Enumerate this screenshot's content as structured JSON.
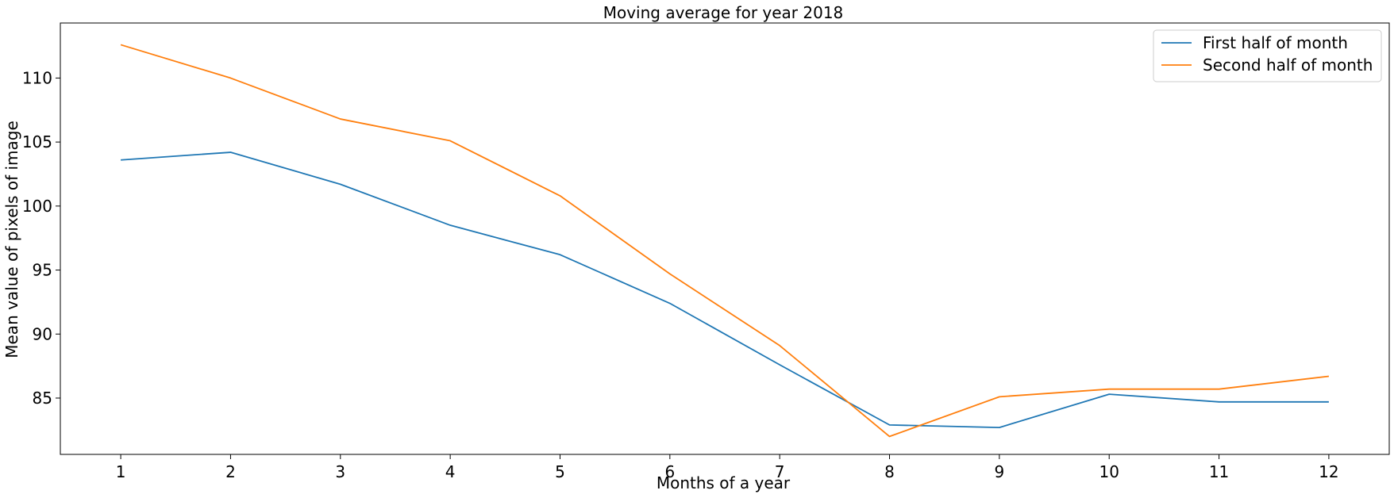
{
  "chart_data": {
    "type": "line",
    "title": "Moving average for year 2018",
    "xlabel": "Months of a year",
    "ylabel": "Mean value of pixels of image",
    "x": [
      1,
      2,
      3,
      4,
      5,
      6,
      7,
      8,
      9,
      10,
      11,
      12
    ],
    "x_ticks": [
      "1",
      "2",
      "3",
      "4",
      "5",
      "6",
      "7",
      "8",
      "9",
      "10",
      "11",
      "12"
    ],
    "y_ticks": [
      85,
      90,
      95,
      100,
      105,
      110
    ],
    "xlim": [
      0.45,
      12.55
    ],
    "ylim": [
      80.6,
      114.3
    ],
    "grid": false,
    "legend_position": "top-right",
    "series": [
      {
        "name": "First half of month",
        "color": "#1f77b4",
        "values": [
          103.6,
          104.2,
          101.7,
          98.5,
          96.2,
          92.4,
          87.6,
          82.9,
          82.7,
          85.3,
          84.7,
          84.7
        ]
      },
      {
        "name": "Second half of month",
        "color": "#ff7f0e",
        "values": [
          112.6,
          110.0,
          106.8,
          105.1,
          100.8,
          94.7,
          89.1,
          82.0,
          85.1,
          85.7,
          85.7,
          86.7
        ]
      }
    ]
  }
}
